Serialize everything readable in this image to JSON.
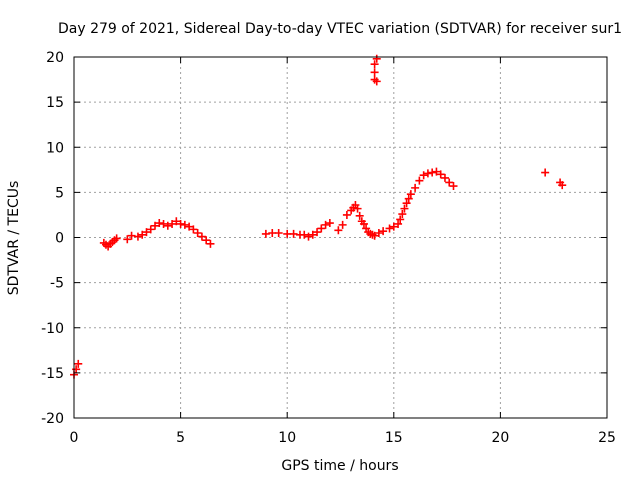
{
  "chart_data": {
    "type": "scatter",
    "title": "Day 279 of 2021, Sidereal Day-to-day VTEC variation (SDTVAR) for receiver sur1",
    "xlabel": "GPS time / hours",
    "ylabel": "SDTVAR / TECUs",
    "xlim": [
      0,
      25
    ],
    "ylim": [
      -20,
      20
    ],
    "xticks": [
      0,
      5,
      10,
      15,
      20,
      25
    ],
    "xtick_labels": [
      "0",
      "5",
      "10",
      "15",
      "20",
      "25"
    ],
    "yticks": [
      -20,
      -15,
      -10,
      -5,
      0,
      5,
      10,
      15,
      20
    ],
    "ytick_labels": [
      "-20",
      "-15",
      "-10",
      "-5",
      "0",
      "5",
      "10",
      "15",
      "20"
    ],
    "grid": true,
    "marker": "plus",
    "series_color": "#ff0000",
    "series": [
      {
        "name": "sur1",
        "x": [
          0.0,
          0.1,
          0.2,
          1.4,
          1.5,
          1.6,
          1.7,
          1.8,
          1.9,
          2.0,
          2.5,
          2.7,
          3.0,
          3.2,
          3.4,
          3.6,
          3.8,
          4.0,
          4.2,
          4.4,
          4.6,
          4.8,
          5.0,
          5.2,
          5.4,
          5.6,
          5.8,
          6.0,
          6.2,
          6.4,
          9.0,
          9.3,
          9.6,
          10.0,
          10.3,
          10.6,
          10.8,
          11.0,
          11.2,
          11.4,
          11.6,
          11.8,
          12.0,
          12.4,
          12.6,
          12.8,
          13.0,
          13.1,
          13.2,
          13.3,
          13.4,
          13.5,
          13.6,
          13.7,
          13.8,
          13.9,
          14.0,
          14.1,
          14.3,
          14.5,
          14.8,
          15.0,
          15.2,
          15.3,
          15.4,
          15.5,
          15.6,
          15.7,
          15.8,
          16.0,
          16.2,
          16.4,
          16.6,
          16.8,
          17.0,
          17.2,
          17.4,
          17.6,
          17.8,
          14.1,
          14.1,
          14.1,
          14.2,
          14.2,
          22.1,
          22.8,
          22.9
        ],
        "y": [
          -15.2,
          -14.6,
          -14.0,
          -0.6,
          -0.8,
          -1.0,
          -0.7,
          -0.5,
          -0.3,
          -0.1,
          -0.2,
          0.2,
          0.1,
          0.3,
          0.6,
          0.9,
          1.3,
          1.6,
          1.5,
          1.3,
          1.5,
          1.8,
          1.5,
          1.4,
          1.2,
          0.9,
          0.5,
          0.1,
          -0.3,
          -0.7,
          0.4,
          0.5,
          0.5,
          0.4,
          0.4,
          0.3,
          0.3,
          0.1,
          0.3,
          0.6,
          1.0,
          1.4,
          1.6,
          0.8,
          1.4,
          2.5,
          3.0,
          3.3,
          3.6,
          3.2,
          2.4,
          1.8,
          1.5,
          1.0,
          0.6,
          0.4,
          0.3,
          0.2,
          0.5,
          0.7,
          1.0,
          1.2,
          1.5,
          2.0,
          2.6,
          3.2,
          3.8,
          4.3,
          4.8,
          5.5,
          6.3,
          6.9,
          7.1,
          7.2,
          7.3,
          7.0,
          6.6,
          6.1,
          5.7,
          17.5,
          18.3,
          19.2,
          19.8,
          17.3,
          7.2,
          6.1,
          5.8
        ]
      }
    ]
  }
}
